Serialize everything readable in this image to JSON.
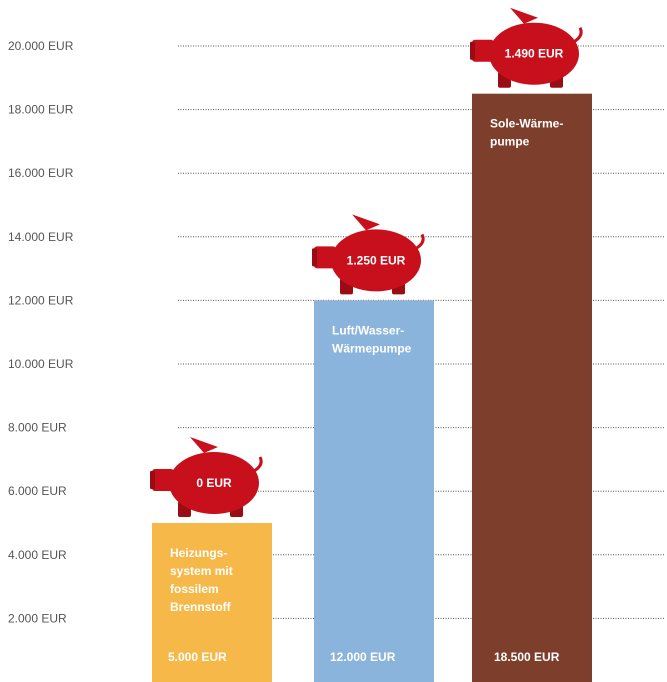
{
  "colors": {
    "gridline": "#555555",
    "tick_text": "#555555",
    "piggy": "#c8101c",
    "piggy_dark": "#9a0c14",
    "label_text": "#ffffff"
  },
  "chart_data": {
    "type": "bar",
    "title": "",
    "xlabel": "",
    "ylabel": "",
    "ylim": [
      0,
      20000
    ],
    "grid": true,
    "y_ticks": [
      "2.000 EUR",
      "4.000 EUR",
      "6.000 EUR",
      "8.000 EUR",
      "10.000 EUR",
      "12.000 EUR",
      "14.000 EUR",
      "16.000 EUR",
      "18.000 EUR",
      "20.000 EUR"
    ],
    "y_tick_values": [
      2000,
      4000,
      6000,
      8000,
      10000,
      12000,
      14000,
      16000,
      18000,
      20000
    ],
    "bars": [
      {
        "name_lines": [
          "Heizungs-",
          "system mit",
          "fossilem",
          "Brennstoff"
        ],
        "value": 5000,
        "value_label": "5.000 EUR",
        "saving_label": "0 EUR",
        "color": "#f7b84a"
      },
      {
        "name_lines": [
          "Luft/Wasser-",
          "Wärmepumpe"
        ],
        "value": 12000,
        "value_label": "12.000 EUR",
        "saving_label": "1.250 EUR",
        "color": "#8ab4dc"
      },
      {
        "name_lines": [
          "Sole-Wärme-",
          "pumpe"
        ],
        "value": 18500,
        "value_label": "18.500 EUR",
        "saving_label": "1.490 EUR",
        "color": "#7e3e2c"
      }
    ]
  }
}
